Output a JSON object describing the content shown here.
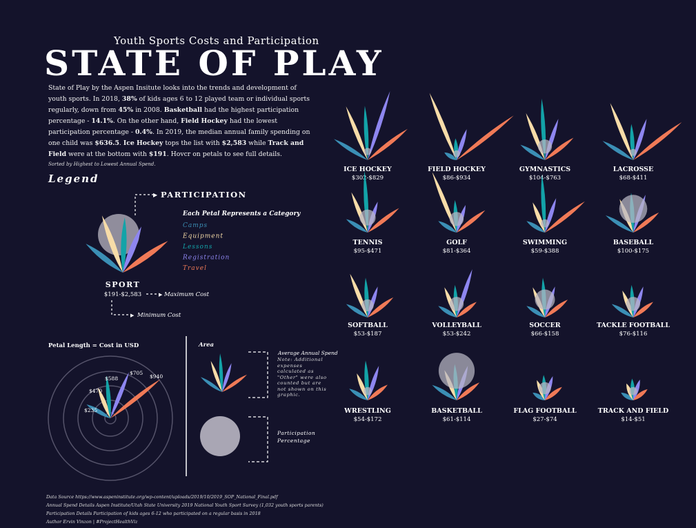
{
  "header": {
    "subtitle": "Youth Sports Costs and Participation",
    "title": "STATE OF PLAY"
  },
  "intro": {
    "p1": "State of Play by the Aspen Insitute looks into the trends and development of youth sports. In 2018, ",
    "b1": "38%",
    "p2": " of kids ages 6 to 12 played team or individual sports regularly, down from ",
    "b2": "45%",
    "p3": " in 2008. ",
    "b3": "Basketball",
    "p4": " had the highest participation percentage - ",
    "b4": "14.1%",
    "p5": ". On the other hand, ",
    "b5": "Field Hockey",
    "p6": " had the lowest participation percentage - ",
    "b6": "0.4%",
    "p7": ". In 2019, the median annual family spending on one child was ",
    "b7": "$636.5",
    "p8": ". ",
    "b8": "Ice Hockey",
    "p9": " tops the list with ",
    "b9": "$2,583",
    "p10": " while ",
    "b10": "Track and Field",
    "p11": " were at the bottom with ",
    "b11": "$191",
    "p12": ". Hovcr on petals to see full details.",
    "sort_note": "Sorted by Highest to Lowest Annual Spend."
  },
  "legend": {
    "title": "Legend",
    "participation_label": "PARTICIPATION",
    "petal_title": "Each Petal Represents a Category",
    "categories": [
      {
        "name": "Camps",
        "color": "#3b8fb5"
      },
      {
        "name": "Equipment",
        "color": "#f7dca8"
      },
      {
        "name": "Lessons",
        "color": "#13a3a8"
      },
      {
        "name": "Registration",
        "color": "#8e86f0"
      },
      {
        "name": "Travel",
        "color": "#f07a57"
      }
    ],
    "sport_label": "SPORT",
    "sport_range": "$191-$2,583",
    "max_cost": "Maximum Cost",
    "min_cost": "Minimum Cost",
    "petal_length_title": "Petal Length = Cost in USD",
    "ring_labels": [
      "$235",
      "$470",
      "$588",
      "$705",
      "$940"
    ],
    "area_title": "Area",
    "avg_spend": "Average Annual Spend",
    "avg_note": "Note: Additional expenses calculated as \"Other\" were also counted but are not shown on this graphic.",
    "participation_pct": "Participation Percentage"
  },
  "sports": [
    {
      "name": "ICE HOCKEY",
      "range": "$302-$829",
      "petals": [
        0.55,
        0.8,
        0.75,
        1.0,
        0.7
      ],
      "circle": 0.18
    },
    {
      "name": "FIELD HOCKEY",
      "range": "$86-$934",
      "petals": [
        0.2,
        1.0,
        0.3,
        0.45,
        1.0
      ],
      "circle": 0.1
    },
    {
      "name": "GYMNASTICS",
      "range": "$104-$763",
      "petals": [
        0.4,
        0.7,
        0.85,
        0.6,
        0.5
      ],
      "circle": 0.35
    },
    {
      "name": "LACROSSE",
      "range": "$68-$411",
      "petals": [
        0.5,
        0.85,
        0.5,
        0.6,
        0.85
      ],
      "circle": 0.15
    },
    {
      "name": "TENNIS",
      "range": "$95-$471",
      "petals": [
        0.35,
        0.6,
        0.85,
        0.45,
        0.55
      ],
      "circle": 0.4
    },
    {
      "name": "GOLF",
      "range": "$81-$364",
      "petals": [
        0.3,
        0.9,
        0.45,
        0.4,
        0.5
      ],
      "circle": 0.35
    },
    {
      "name": "SWIMMING",
      "range": "$59-$388",
      "petals": [
        0.3,
        0.45,
        0.8,
        0.5,
        0.7
      ],
      "circle": 0.2
    },
    {
      "name": "BASEBALL",
      "range": "$100-$175",
      "petals": [
        0.45,
        0.5,
        0.55,
        0.55,
        0.45
      ],
      "circle": 0.7
    },
    {
      "name": "SOFTBALL",
      "range": "$53-$187",
      "petals": [
        0.35,
        0.65,
        0.55,
        0.45,
        0.45
      ],
      "circle": 0.3
    },
    {
      "name": "VOLLEYBALL",
      "range": "$53-$242",
      "petals": [
        0.3,
        0.45,
        0.45,
        0.7,
        0.35
      ],
      "circle": 0.35
    },
    {
      "name": "SOCCER",
      "range": "$66-$158",
      "petals": [
        0.3,
        0.45,
        0.55,
        0.45,
        0.4
      ],
      "circle": 0.5
    },
    {
      "name": "TACKLE FOOTBALL",
      "range": "$76-$116",
      "petals": [
        0.35,
        0.4,
        0.45,
        0.45,
        0.35
      ],
      "circle": 0.35
    },
    {
      "name": "WRESTLING",
      "range": "$54-$172",
      "petals": [
        0.3,
        0.4,
        0.55,
        0.5,
        0.35
      ],
      "circle": 0.2
    },
    {
      "name": "BASKETBALL",
      "range": "$61-$114",
      "petals": [
        0.4,
        0.45,
        0.5,
        0.5,
        0.4
      ],
      "circle": 0.9
    },
    {
      "name": "FLAG FOOTBALL",
      "range": "$27-$74",
      "petals": [
        0.2,
        0.3,
        0.35,
        0.35,
        0.3
      ],
      "circle": 0.3
    },
    {
      "name": "TRACK AND FIELD",
      "range": "$14-$51",
      "petals": [
        0.2,
        0.25,
        0.3,
        0.3,
        0.25
      ],
      "circle": 0.2
    }
  ],
  "footer": {
    "line1": "Data Source  https://www.aspeninstitute.org/wp-content/uploads/2019/10/2019_SOP_National_Final.pdf",
    "line2": "Annual Spend Details  Aspen Institute/Utah State University 2019 National Youth Sport Survey (1,032 youth sports parents)",
    "line3": "Participation Details  Participation of kids ages 6-12 who participated on a regular basis in 2018",
    "line4": "Author Ervin Vinzon | #ProjectHealthViz"
  }
}
